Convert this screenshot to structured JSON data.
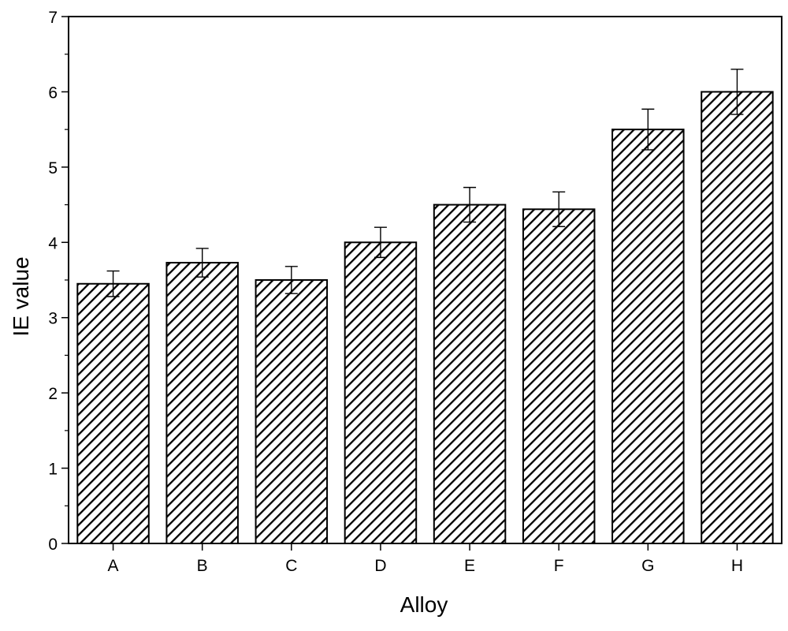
{
  "chart_data": {
    "type": "bar",
    "title": "",
    "xlabel": "Alloy",
    "ylabel": "IE value",
    "categories": [
      "A",
      "B",
      "C",
      "D",
      "E",
      "F",
      "G",
      "H"
    ],
    "values": [
      3.45,
      3.73,
      3.5,
      4.0,
      4.5,
      4.44,
      5.5,
      6.0
    ],
    "error": [
      0.17,
      0.19,
      0.18,
      0.2,
      0.23,
      0.23,
      0.27,
      0.3
    ],
    "ylim": [
      0,
      7
    ],
    "yticks": [
      "0",
      "1",
      "2",
      "3",
      "4",
      "5",
      "6",
      "7"
    ],
    "grid": false,
    "legend": "none",
    "bar_fill": "diagonal-hatch",
    "colors": {
      "bar_outline": "#000000",
      "hatch": "#000000",
      "background": "#ffffff"
    }
  }
}
